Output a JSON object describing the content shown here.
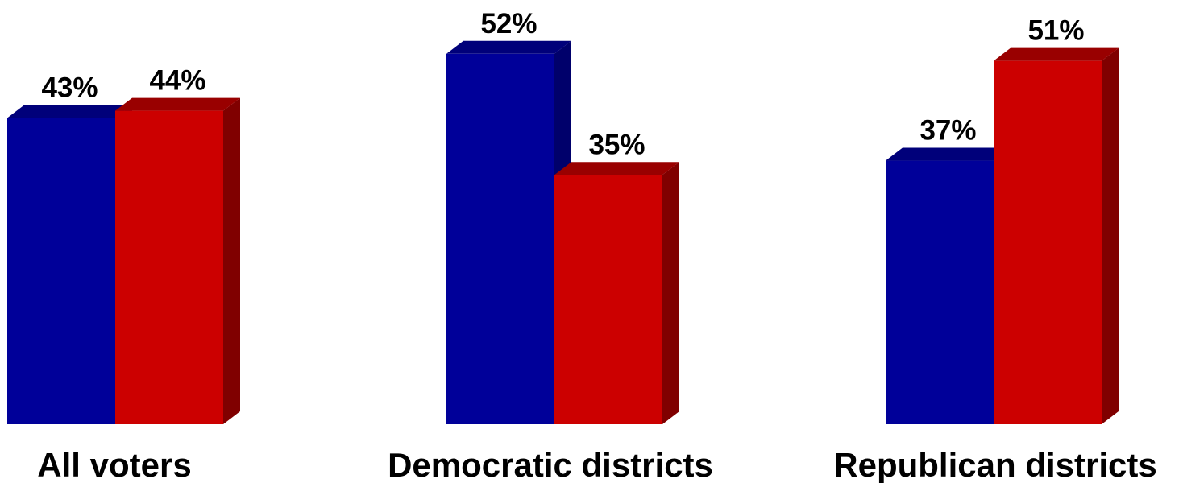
{
  "chart_data": {
    "type": "bar",
    "style": "3d-clustered",
    "categories": [
      "All voters",
      "Democratic districts",
      "Republican districts"
    ],
    "series": [
      {
        "values": [
          43,
          52,
          37
        ],
        "value_labels": [
          "43%",
          "52%",
          "37%"
        ]
      },
      {
        "values": [
          44,
          35,
          51
        ],
        "value_labels": [
          "44%",
          "35%",
          "51%"
        ]
      }
    ],
    "title": "",
    "xlabel": "",
    "ylabel": "",
    "grid": false,
    "colors": {
      "series_0": {
        "front": "#000099",
        "side": "#00006b",
        "top": "#00007a"
      },
      "series_1": {
        "front": "#cc0000",
        "side": "#800000",
        "top": "#990000"
      }
    }
  }
}
